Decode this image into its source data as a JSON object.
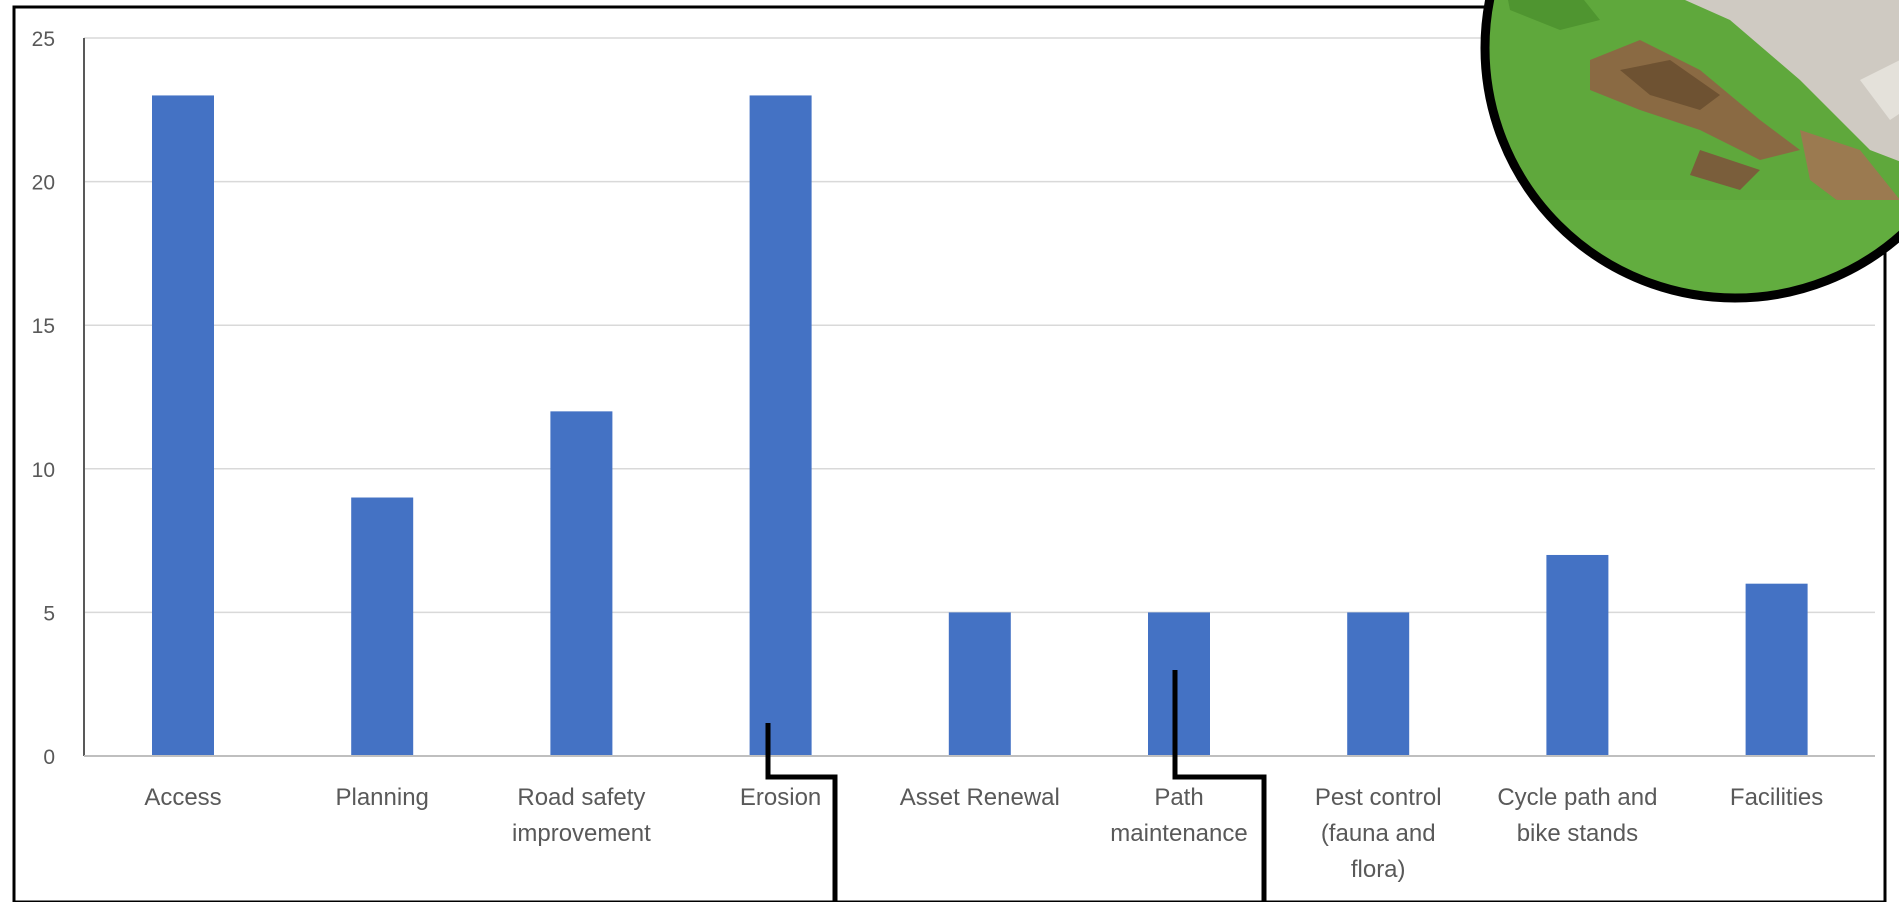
{
  "chart_data": {
    "type": "bar",
    "categories": [
      "Access",
      "Planning",
      "Road safety improvement",
      "Erosion",
      "Asset Renewal",
      "Path maintenance",
      "Pest control (fauna and flora)",
      "Cycle path and bike stands",
      "Facilities"
    ],
    "category_lines": [
      [
        "Access"
      ],
      [
        "Planning"
      ],
      [
        "Road safety",
        "improvement"
      ],
      [
        "Erosion"
      ],
      [
        "Asset Renewal"
      ],
      [
        "Path",
        "maintenance"
      ],
      [
        "Pest control",
        "(fauna and",
        "flora)"
      ],
      [
        "Cycle path and",
        "bike stands"
      ],
      [
        "Facilities"
      ]
    ],
    "values": [
      23,
      9,
      12,
      23,
      5,
      5,
      5,
      7,
      6
    ],
    "yticks": [
      "0",
      "5",
      "10",
      "15",
      "20",
      "25"
    ],
    "ylim": [
      0,
      25
    ],
    "grid": true,
    "bar_color": "#4472C4",
    "grid_color": "#D9D9D9",
    "axis_color": "#BFBFBF",
    "text_color": "#595959",
    "callout_color": "#000000",
    "inset_photo": "eroded-grass-coastline-photo"
  }
}
